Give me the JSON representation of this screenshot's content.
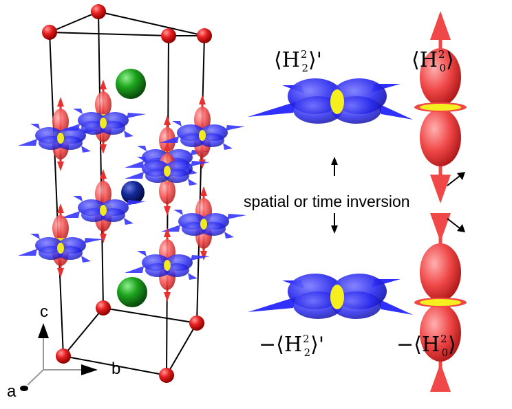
{
  "labels": {
    "h22_prime": {
      "pre": "",
      "base": "H",
      "sup": "2",
      "sub": "2",
      "post": "'"
    },
    "h20": {
      "pre": "",
      "base": "H",
      "sup": "2",
      "sub": "0",
      "post": ""
    },
    "neg_h22_prime": {
      "pre": "−",
      "base": "H",
      "sup": "2",
      "sub": "2",
      "post": "'"
    },
    "neg_h20": {
      "pre": "−",
      "base": "H",
      "sup": "2",
      "sub": "0",
      "post": ""
    }
  },
  "inversion_text": "spatial or time inversion",
  "axes": {
    "a": "a",
    "b": "b",
    "c": "c"
  },
  "colors": {
    "cell_edge": "#000000",
    "corner_atom": "#e01010",
    "green_atom": "#1a9a1a",
    "navy_atom": "#0a1a7a",
    "quadrupole_blue": "#2a2aff",
    "dipole_red": "#f04848",
    "ring_yellow": "#f2ea20"
  }
}
